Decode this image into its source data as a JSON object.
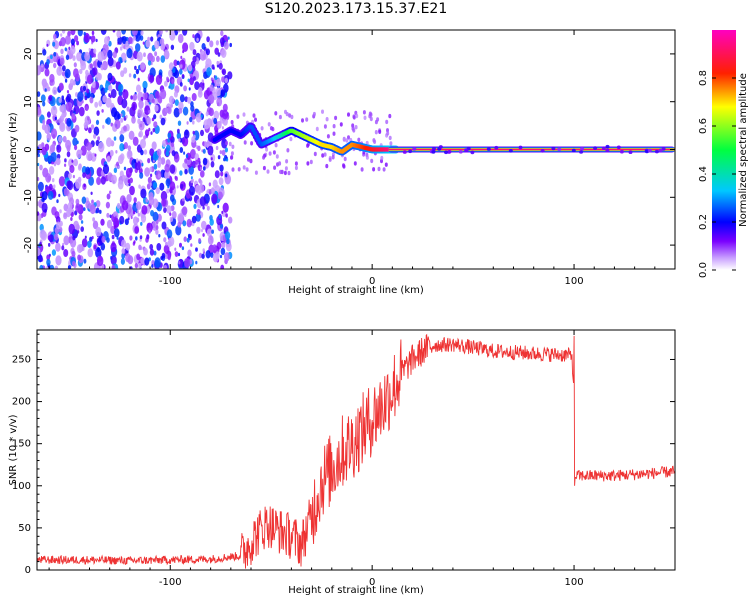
{
  "title": "S120.2023.173.15.37.E21",
  "chart_data": [
    {
      "type": "heatmap",
      "xlabel": "Height of straight line (km)",
      "ylabel": "Frequency (Hz)",
      "xlim": [
        -166,
        150
      ],
      "ylim": [
        -25,
        25
      ],
      "xticks": [
        -100,
        0,
        100
      ],
      "yticks": [
        -20,
        -10,
        0,
        10,
        20
      ],
      "grid": false,
      "colorbar": {
        "label": "Normalized spectral amplitude",
        "range": [
          0.0,
          1.0
        ],
        "ticks": [
          0.0,
          0.2,
          0.4,
          0.6,
          0.8
        ],
        "colormap": "rainbow (white → purple → blue → cyan → green → yellow → red → magenta)"
      },
      "ridge": {
        "description": "dominant frequency trace vs height",
        "x": [
          -78,
          -70,
          -65,
          -60,
          -55,
          -50,
          -45,
          -40,
          -35,
          -30,
          -25,
          -20,
          -15,
          -10,
          -5,
          0,
          5,
          10,
          50,
          100,
          150
        ],
        "y": [
          2,
          4,
          3,
          5,
          1,
          2,
          3,
          4,
          3,
          2,
          1,
          0.5,
          -0.5,
          1,
          0.5,
          0,
          0,
          0,
          0,
          0,
          0
        ],
        "amplitude": [
          0.2,
          0.2,
          0.2,
          0.25,
          0.25,
          0.3,
          0.4,
          0.55,
          0.6,
          0.65,
          0.7,
          0.7,
          0.75,
          0.75,
          0.8,
          0.85,
          0.9,
          0.95,
          0.95,
          0.95,
          0.95
        ]
      },
      "noise_region": {
        "x_range": [
          -166,
          -70
        ],
        "amplitude_range": [
          0.05,
          0.3
        ]
      }
    },
    {
      "type": "line",
      "xlabel": "Height of straight line (km)",
      "ylabel": "SNR (10 * v/v)",
      "xlim": [
        -166,
        150
      ],
      "ylim": [
        0,
        285
      ],
      "xticks": [
        -100,
        0,
        100
      ],
      "yticks": [
        0,
        50,
        100,
        150,
        200,
        250
      ],
      "grid": false,
      "color": "#ee3333",
      "series": [
        {
          "x": [
            -166,
            -140,
            -120,
            -100,
            -80,
            -65,
            -58,
            -52,
            -45,
            -40,
            -35,
            -30,
            -25,
            -20,
            -15,
            -10,
            -5,
            0,
            5,
            10,
            15,
            20,
            25,
            30,
            40,
            60,
            80,
            99,
            100,
            101,
            120,
            140,
            150
          ],
          "y": [
            12,
            12,
            11,
            12,
            13,
            17,
            40,
            55,
            45,
            40,
            30,
            65,
            105,
            120,
            140,
            150,
            165,
            180,
            195,
            215,
            235,
            250,
            260,
            267,
            268,
            260,
            257,
            255,
            205,
            112,
            112,
            115,
            117
          ]
        }
      ]
    }
  ]
}
